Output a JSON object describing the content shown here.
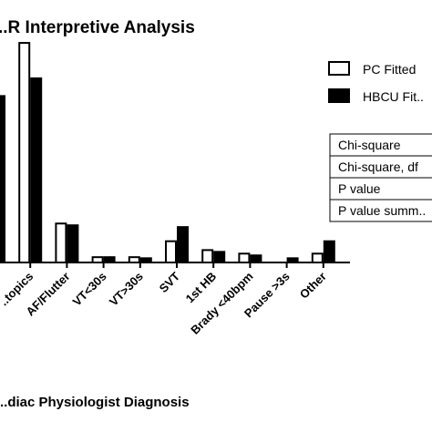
{
  "chart_data": {
    "type": "bar",
    "title": "..R Interpretive Analysis",
    "xlabel": "..diac Physiologist Diagnosis",
    "ylabel": "",
    "categories": [
      "..",
      "..topics",
      "AF/Flutter",
      "VT<30s",
      "VT>30s",
      "SVT",
      "1st HB",
      "Brady <40bpm",
      "Pause >3s",
      "Other"
    ],
    "series": [
      {
        "name": "PC Fitted",
        "fill": "#ffffff",
        "values": [
          0,
          62,
          11,
          1.5,
          1.5,
          6,
          3.5,
          2.5,
          0,
          2.5
        ]
      },
      {
        "name": "HBCU Fit..",
        "fill": "#000000",
        "values": [
          47,
          52,
          10.5,
          1.5,
          1.2,
          10,
          3,
          2,
          1.2,
          6
        ]
      }
    ],
    "ylim": [
      0,
      70
    ],
    "grid": false,
    "legend_position": "top-right",
    "stats_table": [
      "Chi-square",
      "Chi-square, df",
      "P value",
      "P value summ.."
    ]
  }
}
